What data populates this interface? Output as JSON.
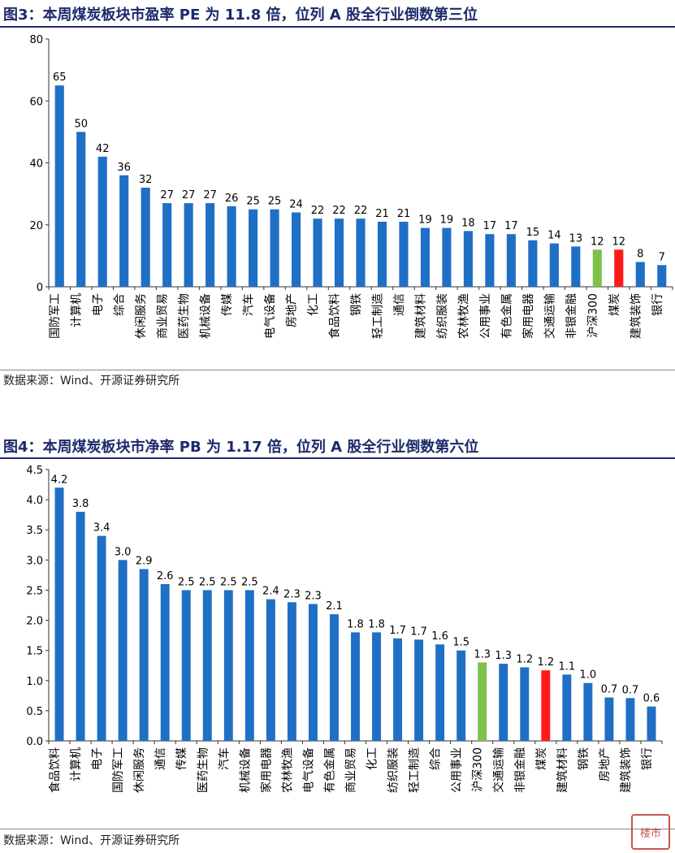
{
  "figure3": {
    "title": "图3：本周煤炭板块市盈率 PE 为 11.8 倍，位列 A 股全行业倒数第三位",
    "source": "数据来源：Wind、开源证券研究所"
  },
  "figure4": {
    "title": "图4：本周煤炭板块市净率 PB 为 1.17 倍，位列 A 股全行业倒数第六位",
    "source": "数据来源：Wind、开源证券研究所"
  },
  "watermark": "楼市",
  "colors": {
    "default": "#1f6fc5",
    "highlight_index": "#7dc24b",
    "highlight_coal": "#ff1a1a"
  },
  "chart_data": [
    {
      "type": "bar",
      "title": "本周煤炭板块市盈率 PE 为 11.8 倍，位列 A 股全行业倒数第三位",
      "categories": [
        "国防军工",
        "计算机",
        "电子",
        "综合",
        "休闲服务",
        "商业贸易",
        "医药生物",
        "机械设备",
        "传媒",
        "汽车",
        "电气设备",
        "房地产",
        "化工",
        "食品饮料",
        "钢铁",
        "轻工制造",
        "通信",
        "建筑材料",
        "纺织服装",
        "农林牧渔",
        "公用事业",
        "有色金属",
        "家用电器",
        "交通运输",
        "非银金融",
        "沪深300",
        "煤炭",
        "建筑装饰",
        "银行"
      ],
      "values": [
        65,
        50,
        42,
        36,
        32,
        27,
        27,
        27,
        26,
        25,
        25,
        24,
        22,
        22,
        22,
        21,
        21,
        19,
        19,
        18,
        17,
        17,
        15,
        14,
        13,
        12,
        12,
        8,
        7
      ],
      "labels": [
        "65",
        "50",
        "42",
        "36",
        "32",
        "27",
        "27",
        "27",
        "26",
        "25",
        "25",
        "24",
        "22",
        "22",
        "22",
        "21",
        "21",
        "19",
        "19",
        "18",
        "17",
        "17",
        "15",
        "14",
        "13",
        "12",
        "12",
        "8",
        "7"
      ],
      "highlight": {
        "沪深300": "highlight_index",
        "煤炭": "highlight_coal"
      },
      "ylim": [
        0,
        80
      ],
      "yticks": [
        "0",
        "20",
        "40",
        "60",
        "80"
      ],
      "grid": false
    },
    {
      "type": "bar",
      "title": "本周煤炭板块市净率 PB 为 1.17 倍，位列 A 股全行业倒数第六位",
      "categories": [
        "食品饮料",
        "计算机",
        "电子",
        "国防军工",
        "休闲服务",
        "通信",
        "传媒",
        "医药生物",
        "汽车",
        "机械设备",
        "家用电器",
        "农林牧渔",
        "电气设备",
        "有色金属",
        "商业贸易",
        "化工",
        "纺织服装",
        "轻工制造",
        "综合",
        "公用事业",
        "沪深300",
        "交通运输",
        "非银金融",
        "煤炭",
        "建筑材料",
        "钢铁",
        "房地产",
        "建筑装饰",
        "银行"
      ],
      "values": [
        4.2,
        3.8,
        3.4,
        3.0,
        2.85,
        2.6,
        2.5,
        2.5,
        2.5,
        2.5,
        2.35,
        2.3,
        2.27,
        2.1,
        1.8,
        1.8,
        1.7,
        1.68,
        1.6,
        1.5,
        1.3,
        1.28,
        1.22,
        1.17,
        1.1,
        0.96,
        0.72,
        0.71,
        0.57
      ],
      "labels": [
        "4.2",
        "3.8",
        "3.4",
        "3.0",
        "2.9",
        "2.6",
        "2.5",
        "2.5",
        "2.5",
        "2.5",
        "2.4",
        "2.3",
        "2.3",
        "2.1",
        "1.8",
        "1.8",
        "1.7",
        "1.7",
        "1.6",
        "1.5",
        "1.3",
        "1.3",
        "1.2",
        "1.2",
        "1.1",
        "1.0",
        "0.7",
        "0.7",
        "0.6"
      ],
      "highlight": {
        "沪深300": "highlight_index",
        "煤炭": "highlight_coal"
      },
      "ylim": [
        0,
        4.5
      ],
      "yticks": [
        "0.0",
        "0.5",
        "1.0",
        "1.5",
        "2.0",
        "2.5",
        "3.0",
        "3.5",
        "4.0",
        "4.5"
      ],
      "grid": false
    }
  ]
}
